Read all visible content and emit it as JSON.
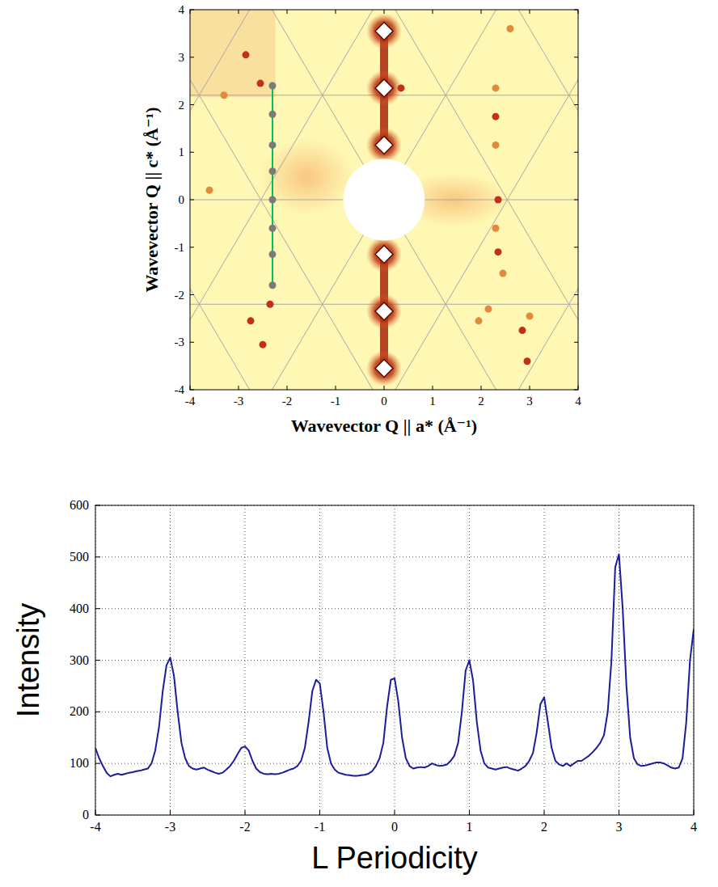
{
  "chart_data": [
    {
      "type": "scatter",
      "xlabel": "Wavevector Q || a* (Å⁻¹)",
      "ylabel": "Wavevector Q || c* (Å⁻¹)",
      "xlim": [
        -4,
        4
      ],
      "ylim": [
        -4,
        4
      ],
      "xticks": [
        -4,
        -3,
        -2,
        -1,
        0,
        1,
        2,
        3,
        4
      ],
      "yticks": [
        -4,
        -3,
        -2,
        -1,
        0,
        1,
        2,
        3,
        4
      ],
      "grid": true,
      "lattice_spacing": 2.2,
      "series": [
        {
          "type": "scatter",
          "marker": "diamond",
          "color": "#ffffff",
          "x": [
            0,
            0,
            0,
            0,
            0,
            0
          ],
          "values": [
            3.55,
            2.35,
            1.15,
            -1.15,
            -2.35,
            -3.55
          ]
        },
        {
          "type": "scatter",
          "marker": "circle",
          "color": "#c0301a",
          "x": [
            -2.85,
            -2.55,
            -2.75,
            -2.35,
            2.3,
            2.35,
            2.35,
            2.85,
            2.95,
            0.35,
            -2.5
          ],
          "values": [
            3.05,
            2.45,
            -2.55,
            -2.2,
            1.75,
            0.0,
            -1.1,
            -2.75,
            -3.4,
            2.35,
            -3.05
          ]
        },
        {
          "type": "scatter",
          "marker": "circle",
          "color": "#e08a3a",
          "x": [
            2.3,
            2.3,
            2.3,
            2.6,
            2.45,
            3.0,
            -3.6,
            -3.3,
            2.15,
            1.95
          ],
          "values": [
            2.35,
            -0.6,
            1.15,
            3.6,
            -1.55,
            -2.45,
            0.2,
            2.2,
            -2.3,
            -2.55
          ]
        },
        {
          "type": "line",
          "color": "#00c060",
          "x": [
            -2.3,
            -2.3
          ],
          "values": [
            2.35,
            -1.8
          ]
        },
        {
          "type": "scatter",
          "marker": "circle",
          "color": "#7a7a7a",
          "x": [
            -2.3,
            -2.3,
            -2.3,
            -2.3,
            -2.3,
            -2.3,
            -2.3,
            -2.3
          ],
          "values": [
            2.4,
            1.8,
            1.15,
            0.6,
            0,
            -0.6,
            -1.15,
            -1.8
          ]
        }
      ]
    },
    {
      "type": "line",
      "xlabel": "L Periodicity",
      "ylabel": "Intensity",
      "xlim": [
        -4,
        4
      ],
      "ylim": [
        0,
        600
      ],
      "xticks": [
        -4,
        -3,
        -2,
        -1,
        0,
        1,
        2,
        3,
        4
      ],
      "yticks": [
        0,
        100,
        200,
        300,
        400,
        500,
        600
      ],
      "grid": true,
      "color": "#1c1c9c",
      "x": [
        -4.0,
        -3.95,
        -3.9,
        -3.85,
        -3.8,
        -3.75,
        -3.7,
        -3.65,
        -3.6,
        -3.55,
        -3.5,
        -3.45,
        -3.4,
        -3.35,
        -3.3,
        -3.25,
        -3.2,
        -3.15,
        -3.1,
        -3.05,
        -3.0,
        -2.95,
        -2.9,
        -2.85,
        -2.8,
        -2.75,
        -2.7,
        -2.65,
        -2.6,
        -2.55,
        -2.5,
        -2.45,
        -2.4,
        -2.35,
        -2.3,
        -2.25,
        -2.2,
        -2.15,
        -2.1,
        -2.05,
        -2.0,
        -1.95,
        -1.9,
        -1.85,
        -1.8,
        -1.75,
        -1.7,
        -1.65,
        -1.6,
        -1.55,
        -1.5,
        -1.45,
        -1.4,
        -1.35,
        -1.3,
        -1.25,
        -1.2,
        -1.15,
        -1.1,
        -1.05,
        -1.0,
        -0.95,
        -0.9,
        -0.85,
        -0.8,
        -0.75,
        -0.7,
        -0.65,
        -0.6,
        -0.55,
        -0.5,
        -0.45,
        -0.4,
        -0.35,
        -0.3,
        -0.25,
        -0.2,
        -0.15,
        -0.1,
        -0.05,
        0.0,
        0.05,
        0.1,
        0.15,
        0.2,
        0.25,
        0.3,
        0.35,
        0.4,
        0.45,
        0.5,
        0.55,
        0.6,
        0.65,
        0.7,
        0.75,
        0.8,
        0.85,
        0.9,
        0.95,
        1.0,
        1.05,
        1.1,
        1.15,
        1.2,
        1.25,
        1.3,
        1.35,
        1.4,
        1.45,
        1.5,
        1.55,
        1.6,
        1.65,
        1.7,
        1.75,
        1.8,
        1.85,
        1.9,
        1.95,
        2.0,
        2.05,
        2.1,
        2.15,
        2.2,
        2.25,
        2.3,
        2.35,
        2.4,
        2.45,
        2.5,
        2.55,
        2.6,
        2.65,
        2.7,
        2.75,
        2.8,
        2.85,
        2.9,
        2.95,
        3.0,
        3.05,
        3.1,
        3.15,
        3.2,
        3.25,
        3.3,
        3.35,
        3.4,
        3.45,
        3.5,
        3.55,
        3.6,
        3.65,
        3.7,
        3.75,
        3.8,
        3.85,
        3.9,
        3.95,
        4.0
      ],
      "values": [
        130,
        110,
        95,
        82,
        75,
        78,
        80,
        78,
        80,
        82,
        83,
        85,
        86,
        88,
        90,
        100,
        125,
        170,
        240,
        290,
        305,
        270,
        200,
        140,
        110,
        95,
        90,
        88,
        90,
        92,
        88,
        85,
        82,
        80,
        82,
        88,
        95,
        105,
        118,
        130,
        133,
        125,
        105,
        90,
        83,
        80,
        79,
        80,
        79,
        80,
        82,
        85,
        88,
        90,
        95,
        105,
        130,
        180,
        240,
        262,
        255,
        200,
        130,
        100,
        88,
        82,
        80,
        78,
        77,
        76,
        76,
        77,
        78,
        80,
        85,
        95,
        110,
        140,
        210,
        262,
        265,
        220,
        150,
        110,
        95,
        90,
        92,
        93,
        92,
        95,
        100,
        97,
        95,
        96,
        98,
        105,
        115,
        140,
        200,
        280,
        300,
        260,
        180,
        125,
        100,
        92,
        90,
        88,
        90,
        92,
        93,
        90,
        88,
        86,
        90,
        95,
        105,
        120,
        160,
        215,
        228,
        180,
        130,
        105,
        98,
        95,
        100,
        95,
        100,
        105,
        105,
        110,
        115,
        122,
        130,
        140,
        155,
        200,
        300,
        480,
        505,
        400,
        250,
        150,
        110,
        98,
        95,
        96,
        98,
        100,
        102,
        102,
        100,
        96,
        92,
        90,
        92,
        110,
        180,
        300,
        360
      ]
    }
  ]
}
